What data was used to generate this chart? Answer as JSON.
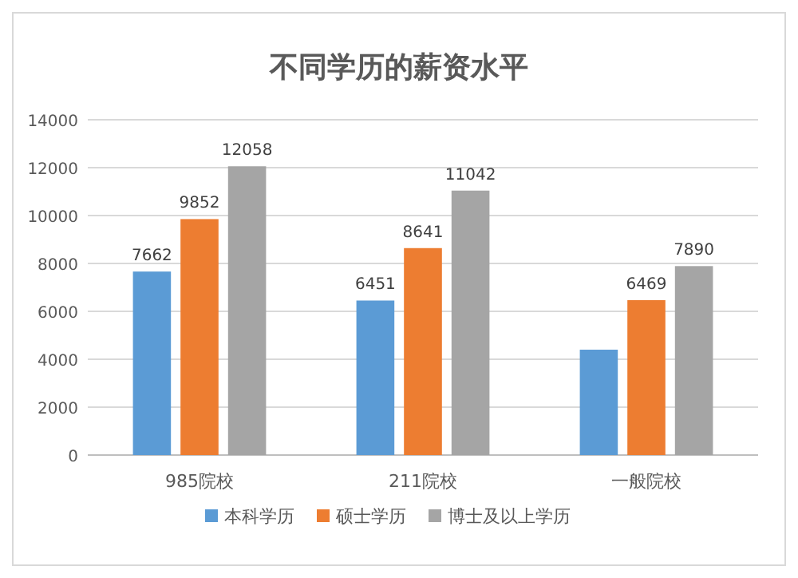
{
  "chart_data": {
    "type": "bar",
    "title": "不同学历的薪资水平",
    "categories": [
      "985院校",
      "211院校",
      "一般院校"
    ],
    "series": [
      {
        "name": "本科学历",
        "color": "#5b9bd5",
        "values": [
          7662,
          6451,
          4400
        ],
        "value_labels": [
          "7662",
          "6451",
          null
        ]
      },
      {
        "name": "硕士学历",
        "color": "#ed7d31",
        "values": [
          9852,
          8641,
          6469
        ],
        "value_labels": [
          "9852",
          "8641",
          "6469"
        ]
      },
      {
        "name": "博士及以上学历",
        "color": "#a5a5a5",
        "values": [
          12058,
          11042,
          7890
        ],
        "value_labels": [
          "12058",
          "11042",
          "7890"
        ]
      }
    ],
    "ylim": [
      0,
      14000
    ],
    "yticks": [
      0,
      2000,
      4000,
      6000,
      8000,
      10000,
      12000,
      14000
    ],
    "grid": "y",
    "legend": "bottom"
  }
}
